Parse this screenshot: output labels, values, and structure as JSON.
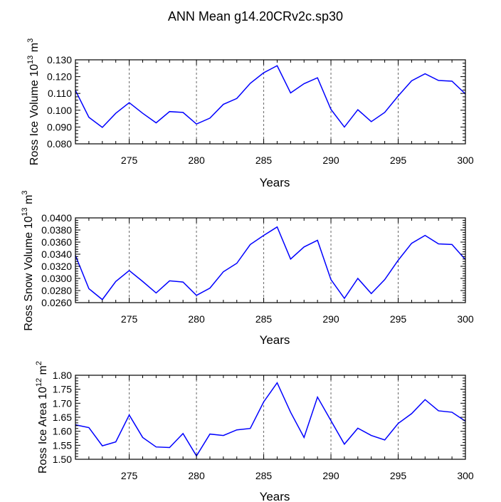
{
  "title": "ANN Mean g14.20CRv2c.sp30",
  "chart_data": [
    {
      "type": "line",
      "ylabel": "Ross Ice Volume 10",
      "ylabel_sup": "13",
      "ylabel_unit": " m",
      "ylabel_unit_sup": "3",
      "xlabel": "Years",
      "xlim": [
        271,
        300
      ],
      "ylim": [
        0.08,
        0.13
      ],
      "yticks": [
        "0.080",
        "0.090",
        "0.100",
        "0.110",
        "0.120",
        "0.130"
      ],
      "xticks": [
        "275",
        "280",
        "285",
        "290",
        "295",
        "300"
      ],
      "grid": "vertical dashed at x ticks",
      "color": "#0000ff",
      "x": [
        271,
        272,
        273,
        274,
        275,
        276,
        277,
        278,
        279,
        280,
        281,
        282,
        283,
        284,
        285,
        286,
        287,
        288,
        289,
        290,
        291,
        292,
        293,
        294,
        295,
        296,
        297,
        298,
        299,
        300
      ],
      "y": [
        0.1118,
        0.0958,
        0.0898,
        0.0982,
        0.1045,
        0.0982,
        0.0925,
        0.0992,
        0.0987,
        0.0918,
        0.0953,
        0.1035,
        0.107,
        0.116,
        0.1223,
        0.1265,
        0.1103,
        0.1158,
        0.1193,
        0.1005,
        0.09,
        0.1003,
        0.0932,
        0.0987,
        0.1085,
        0.1175,
        0.1217,
        0.1177,
        0.1173,
        0.1097
      ]
    },
    {
      "type": "line",
      "ylabel": "Ross Snow Volume 10",
      "ylabel_sup": "13",
      "ylabel_unit": " m",
      "ylabel_unit_sup": "3",
      "xlabel": "Years",
      "xlim": [
        271,
        300
      ],
      "ylim": [
        0.026,
        0.04
      ],
      "yticks": [
        "0.0260",
        "0.0280",
        "0.0300",
        "0.0320",
        "0.0340",
        "0.0360",
        "0.0380",
        "0.0400"
      ],
      "xticks": [
        "275",
        "280",
        "285",
        "290",
        "295",
        "300"
      ],
      "grid": "vertical dashed at x ticks",
      "color": "#0000ff",
      "x": [
        271,
        272,
        273,
        274,
        275,
        276,
        277,
        278,
        279,
        280,
        281,
        282,
        283,
        284,
        285,
        286,
        287,
        288,
        289,
        290,
        291,
        292,
        293,
        294,
        295,
        296,
        297,
        298,
        299,
        300
      ],
      "y": [
        0.0338,
        0.0283,
        0.0265,
        0.0295,
        0.0313,
        0.0295,
        0.0276,
        0.0296,
        0.0294,
        0.0272,
        0.0284,
        0.0311,
        0.0325,
        0.0356,
        0.0371,
        0.0385,
        0.0332,
        0.0352,
        0.0363,
        0.0298,
        0.0267,
        0.03,
        0.0275,
        0.0298,
        0.033,
        0.0358,
        0.0371,
        0.0357,
        0.0356,
        0.0331
      ]
    },
    {
      "type": "line",
      "ylabel": "Ross Ice Area 10",
      "ylabel_sup": "12",
      "ylabel_unit": " m",
      "ylabel_unit_sup": "2",
      "xlabel": "Years",
      "xlim": [
        271,
        300
      ],
      "ylim": [
        1.5,
        1.8
      ],
      "yticks": [
        "1.50",
        "1.55",
        "1.60",
        "1.65",
        "1.70",
        "1.75",
        "1.80"
      ],
      "xticks": [
        "275",
        "280",
        "285",
        "290",
        "295",
        "300"
      ],
      "grid": "vertical dashed at x ticks",
      "color": "#0000ff",
      "x": [
        271,
        272,
        273,
        274,
        275,
        276,
        277,
        278,
        279,
        280,
        281,
        282,
        283,
        284,
        285,
        286,
        287,
        288,
        289,
        290,
        291,
        292,
        293,
        294,
        295,
        296,
        297,
        298,
        299,
        300
      ],
      "y": [
        1.623,
        1.613,
        1.548,
        1.562,
        1.658,
        1.578,
        1.544,
        1.542,
        1.592,
        1.512,
        1.59,
        1.585,
        1.605,
        1.61,
        1.705,
        1.773,
        1.668,
        1.578,
        1.722,
        1.638,
        1.554,
        1.611,
        1.585,
        1.569,
        1.628,
        1.663,
        1.713,
        1.673,
        1.668,
        1.636
      ]
    }
  ]
}
